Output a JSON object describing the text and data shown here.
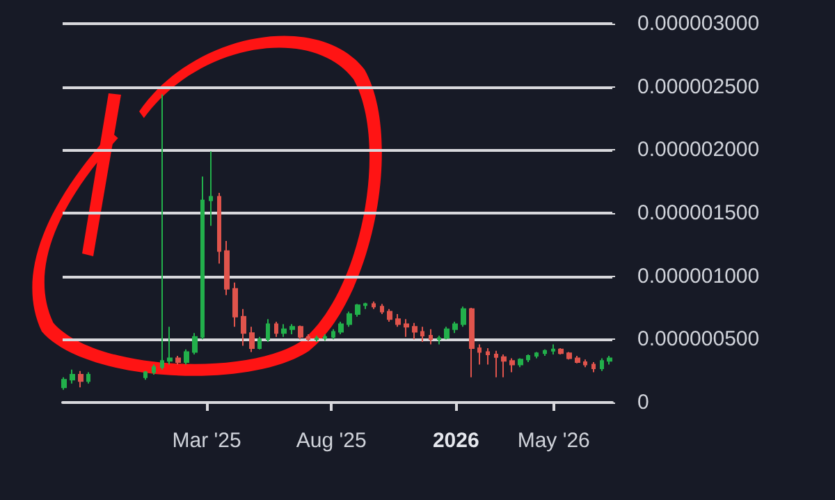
{
  "chart_data": {
    "type": "candlestick",
    "x": [
      "2024-09-07",
      "2024-09-17",
      "2024-09-27",
      "2024-10-07",
      "2024-12-16",
      "2024-12-26",
      "2025-01-05",
      "2025-01-15",
      "2025-01-25",
      "2025-02-04",
      "2025-02-14",
      "2025-02-24",
      "2025-03-06",
      "2025-03-16",
      "2025-03-26",
      "2025-04-05",
      "2025-04-15",
      "2025-04-25",
      "2025-05-05",
      "2025-05-15",
      "2025-05-25",
      "2025-06-04",
      "2025-06-14",
      "2025-06-24",
      "2025-07-04",
      "2025-07-14",
      "2025-07-24",
      "2025-08-03",
      "2025-08-13",
      "2025-08-23",
      "2025-09-02",
      "2025-09-12",
      "2025-09-22",
      "2025-10-02",
      "2025-10-12",
      "2025-10-22",
      "2025-11-01",
      "2025-11-11",
      "2025-11-21",
      "2025-12-01",
      "2025-12-11",
      "2025-12-21",
      "2025-12-31",
      "2026-01-10",
      "2026-01-20",
      "2026-01-30",
      "2026-02-09",
      "2026-02-19",
      "2026-03-01",
      "2026-03-11",
      "2026-03-21",
      "2026-03-31",
      "2026-04-10",
      "2026-04-20",
      "2026-04-30",
      "2026-05-10",
      "2026-05-20",
      "2026-05-30",
      "2026-06-09",
      "2026-06-19",
      "2026-06-29",
      "2026-07-09"
    ],
    "ohlc": [
      [
        1.2e-07,
        2e-07,
        1e-07,
        1.8e-07
      ],
      [
        1.8e-07,
        2.6e-07,
        1.5e-07,
        2.2e-07
      ],
      [
        2.2e-07,
        2.5e-07,
        1.2e-07,
        1.7e-07
      ],
      [
        1.7e-07,
        2.4e-07,
        1.5e-07,
        2.2e-07
      ],
      [
        2e-07,
        2.5e-07,
        1.8e-07,
        2.4e-07
      ],
      [
        2.4e-07,
        3e-07,
        2.2e-07,
        2.8e-07
      ],
      [
        2.8e-07,
        2.44e-06,
        2.6e-07,
        3.3e-07
      ],
      [
        3.3e-07,
        6e-07,
        3e-07,
        3.5e-07
      ],
      [
        3.5e-07,
        3.7e-07,
        3e-07,
        3.2e-07
      ],
      [
        3.2e-07,
        4.2e-07,
        3e-07,
        4e-07
      ],
      [
        4e-07,
        5.5e-07,
        3.8e-07,
        5.2e-07
      ],
      [
        5.2e-07,
        1.79e-06,
        5e-07,
        1.6e-06
      ],
      [
        1.6e-06,
        1.99e-06,
        1.4e-06,
        1.63e-06
      ],
      [
        1.63e-06,
        1.66e-06,
        1.1e-06,
        1.2e-06
      ],
      [
        1.2e-06,
        1.28e-06,
        8.5e-07,
        9e-07
      ],
      [
        9e-07,
        9.5e-07,
        6e-07,
        6.8e-07
      ],
      [
        6.8e-07,
        7.4e-07,
        4.5e-07,
        5.5e-07
      ],
      [
        5.5e-07,
        6e-07,
        4e-07,
        4.3e-07
      ],
      [
        4.3e-07,
        5.2e-07,
        4.2e-07,
        5e-07
      ],
      [
        5e-07,
        6.6e-07,
        4.8e-07,
        6.2e-07
      ],
      [
        6.2e-07,
        6.4e-07,
        5.2e-07,
        5.5e-07
      ],
      [
        5.5e-07,
        6.2e-07,
        5.2e-07,
        5.8e-07
      ],
      [
        5.8e-07,
        6.2e-07,
        5.4e-07,
        6e-07
      ],
      [
        6e-07,
        6.1e-07,
        5e-07,
        5.2e-07
      ],
      [
        5.2e-07,
        5.4e-07,
        4.8e-07,
        5e-07
      ],
      [
        5e-07,
        5.3e-07,
        4.8e-07,
        5.1e-07
      ],
      [
        5.1e-07,
        5.4e-07,
        4.9e-07,
        5.2e-07
      ],
      [
        5.2e-07,
        5.8e-07,
        5e-07,
        5.6e-07
      ],
      [
        5.6e-07,
        6.4e-07,
        5.4e-07,
        6.2e-07
      ],
      [
        6.2e-07,
        7.2e-07,
        6e-07,
        7e-07
      ],
      [
        7e-07,
        7.8e-07,
        6.8e-07,
        7.7e-07
      ],
      [
        7.7e-07,
        7.9e-07,
        7.4e-07,
        7.8e-07
      ],
      [
        7.8e-07,
        8e-07,
        7.4e-07,
        7.6e-07
      ],
      [
        7.6e-07,
        7.8e-07,
        7e-07,
        7.2e-07
      ],
      [
        7.2e-07,
        7.4e-07,
        6.4e-07,
        6.6e-07
      ],
      [
        6.6e-07,
        7e-07,
        6e-07,
        6.2e-07
      ],
      [
        6.2e-07,
        6.6e-07,
        5.2e-07,
        6e-07
      ],
      [
        6e-07,
        6.3e-07,
        5e-07,
        5.6e-07
      ],
      [
        5.6e-07,
        6e-07,
        4.8e-07,
        5.3e-07
      ],
      [
        5.3e-07,
        5.8e-07,
        4.6e-07,
        5e-07
      ],
      [
        5e-07,
        5.3e-07,
        4.6e-07,
        5.1e-07
      ],
      [
        5.1e-07,
        6e-07,
        5e-07,
        5.8e-07
      ],
      [
        5.8e-07,
        6.4e-07,
        5.5e-07,
        6.2e-07
      ],
      [
        6.2e-07,
        7.6e-07,
        6e-07,
        7.4e-07
      ],
      [
        7.4e-07,
        7.5e-07,
        2e-07,
        4.3e-07
      ],
      [
        4.3e-07,
        4.6e-07,
        3e-07,
        4e-07
      ],
      [
        4e-07,
        4.3e-07,
        3e-07,
        3.8e-07
      ],
      [
        3.8e-07,
        4.1e-07,
        2e-07,
        3.6e-07
      ],
      [
        3.6e-07,
        3.8e-07,
        2e-07,
        3.3e-07
      ],
      [
        3.3e-07,
        3.5e-07,
        2.4e-07,
        3e-07
      ],
      [
        3e-07,
        3.5e-07,
        2.8e-07,
        3.4e-07
      ],
      [
        3.4e-07,
        3.8e-07,
        3.2e-07,
        3.7e-07
      ],
      [
        3.7e-07,
        4e-07,
        3.5e-07,
        3.9e-07
      ],
      [
        3.9e-07,
        4.2e-07,
        3.7e-07,
        4.1e-07
      ],
      [
        4.1e-07,
        4.6e-07,
        3.8e-07,
        4.2e-07
      ],
      [
        4.2e-07,
        4.3e-07,
        3.8e-07,
        3.9e-07
      ],
      [
        3.9e-07,
        4e-07,
        3.4e-07,
        3.5e-07
      ],
      [
        3.5e-07,
        3.7e-07,
        3.1e-07,
        3.2e-07
      ],
      [
        3.2e-07,
        3.4e-07,
        2.8e-07,
        3e-07
      ],
      [
        3e-07,
        3.2e-07,
        2.4e-07,
        2.7e-07
      ],
      [
        2.7e-07,
        3.5e-07,
        2.5e-07,
        3.3e-07
      ],
      [
        3.3e-07,
        3.7e-07,
        3e-07,
        3.5e-07
      ]
    ],
    "colors": [
      "#22b04b",
      "#22b04b",
      "#e0544c",
      "#22b04b",
      "#22b04b",
      "#22b04b",
      "#22b04b",
      "#22b04b",
      "#e0544c",
      "#22b04b",
      "#22b04b",
      "#22b04b",
      "#22b04b",
      "#e0544c",
      "#e0544c",
      "#e0544c",
      "#e0544c",
      "#e0544c",
      "#22b04b",
      "#22b04b",
      "#e0544c",
      "#22b04b",
      "#22b04b",
      "#e0544c",
      "#e0544c",
      "#22b04b",
      "#22b04b",
      "#22b04b",
      "#22b04b",
      "#22b04b",
      "#22b04b",
      "#22b04b",
      "#e0544c",
      "#e0544c",
      "#e0544c",
      "#e0544c",
      "#e0544c",
      "#e0544c",
      "#e0544c",
      "#e0544c",
      "#22b04b",
      "#22b04b",
      "#22b04b",
      "#22b04b",
      "#e0544c",
      "#e0544c",
      "#e0544c",
      "#e0544c",
      "#e0544c",
      "#e0544c",
      "#22b04b",
      "#22b04b",
      "#22b04b",
      "#22b04b",
      "#22b04b",
      "#e0544c",
      "#e0544c",
      "#e0544c",
      "#e0544c",
      "#e0544c",
      "#22b04b",
      "#22b04b"
    ],
    "xlim": [
      "2024-09-05",
      "2026-07-12"
    ],
    "xticks": [
      {
        "value": "2025-03-01",
        "label": "Mar '25"
      },
      {
        "value": "2025-08-01",
        "label": "Aug '25"
      },
      {
        "value": "2026-01-01",
        "label": "2026"
      },
      {
        "value": "2026-05-01",
        "label": "May '26"
      }
    ],
    "ylim": [
      0,
      3e-06
    ],
    "yticks": [
      {
        "value": 0,
        "label": "0"
      },
      {
        "value": 5e-07,
        "label": "0.000000500"
      },
      {
        "value": 1e-06,
        "label": "0.000001000"
      },
      {
        "value": 1.5e-06,
        "label": "0.000001500"
      },
      {
        "value": 2e-06,
        "label": "0.000002000"
      },
      {
        "value": 2.5e-06,
        "label": "0.000002500"
      },
      {
        "value": 3e-06,
        "label": "0.000003000"
      }
    ],
    "grid": "y"
  }
}
